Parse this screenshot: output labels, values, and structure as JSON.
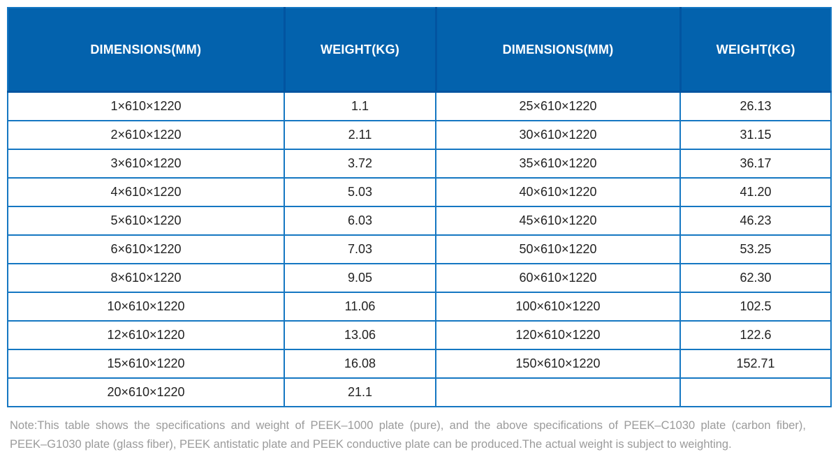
{
  "colors": {
    "header_bg": "#0362ad",
    "header_divider": "#0254a0",
    "row_border": "#1577c2",
    "cell_text": "#222222",
    "header_text": "#ffffff",
    "note_text": "#9b9b9b",
    "page_bg": "#ffffff"
  },
  "chart_data": {
    "type": "table",
    "columns": [
      "DIMENSIONS(MM)",
      "WEIGHT(KG)",
      "DIMENSIONS(MM)",
      "WEIGHT(KG)"
    ],
    "rows": [
      [
        "1×610×1220",
        "1.1",
        "25×610×1220",
        "26.13"
      ],
      [
        "2×610×1220",
        "2.11",
        "30×610×1220",
        "31.15"
      ],
      [
        "3×610×1220",
        "3.72",
        "35×610×1220",
        "36.17"
      ],
      [
        "4×610×1220",
        "5.03",
        "40×610×1220",
        "41.20"
      ],
      [
        "5×610×1220",
        "6.03",
        "45×610×1220",
        "46.23"
      ],
      [
        "6×610×1220",
        "7.03",
        "50×610×1220",
        "53.25"
      ],
      [
        "8×610×1220",
        "9.05",
        "60×610×1220",
        "62.30"
      ],
      [
        "10×610×1220",
        "11.06",
        "100×610×1220",
        "102.5"
      ],
      [
        "12×610×1220",
        "13.06",
        "120×610×1220",
        "122.6"
      ],
      [
        "15×610×1220",
        "16.08",
        "150×610×1220",
        "152.71"
      ],
      [
        "20×610×1220",
        "21.1",
        "",
        ""
      ]
    ],
    "note": "Note:This table shows the specifications and weight of PEEK–1000 plate (pure), and the above specifications of PEEK–C1030 plate (carbon fiber), PEEK–G1030 plate (glass fiber), PEEK antistatic plate and PEEK conductive plate can be produced.The actual weight is subject to weighting."
  },
  "note": {
    "line1": "Note:This table shows the specifications and weight of PEEK–1000 plate (pure), and the above specifications of PEEK–C1030 plate (carbon fiber),",
    "line2": "PEEK–G1030 plate (glass fiber), PEEK antistatic plate and PEEK conductive plate can be produced.The actual weight is subject to weighting."
  }
}
